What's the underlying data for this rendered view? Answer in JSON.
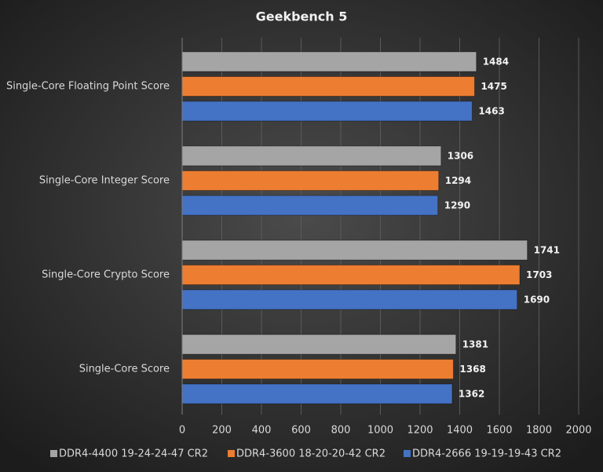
{
  "chart_data": {
    "type": "bar",
    "orientation": "horizontal",
    "title": "Geekbench 5",
    "categories": [
      "Single-Core Floating Point Score",
      "Single-Core Integer Score",
      "Single-Core Crypto Score",
      "Single-Core Score"
    ],
    "series": [
      {
        "name": "DDR4-4400 19-24-24-47 CR2",
        "color": "#a5a5a5",
        "values": [
          1484,
          1306,
          1741,
          1381
        ]
      },
      {
        "name": "DDR4-3600 18-20-20-42 CR2",
        "color": "#ed7d31",
        "values": [
          1475,
          1294,
          1703,
          1368
        ]
      },
      {
        "name": "DDR4-2666 19-19-19-43 CR2",
        "color": "#4472c4",
        "values": [
          1463,
          1290,
          1690,
          1362
        ]
      }
    ],
    "xlim": [
      0,
      2000
    ],
    "xticks": [
      0,
      200,
      400,
      600,
      800,
      1000,
      1200,
      1400,
      1600,
      1800,
      2000
    ],
    "grid": true,
    "legend": "bottom"
  }
}
